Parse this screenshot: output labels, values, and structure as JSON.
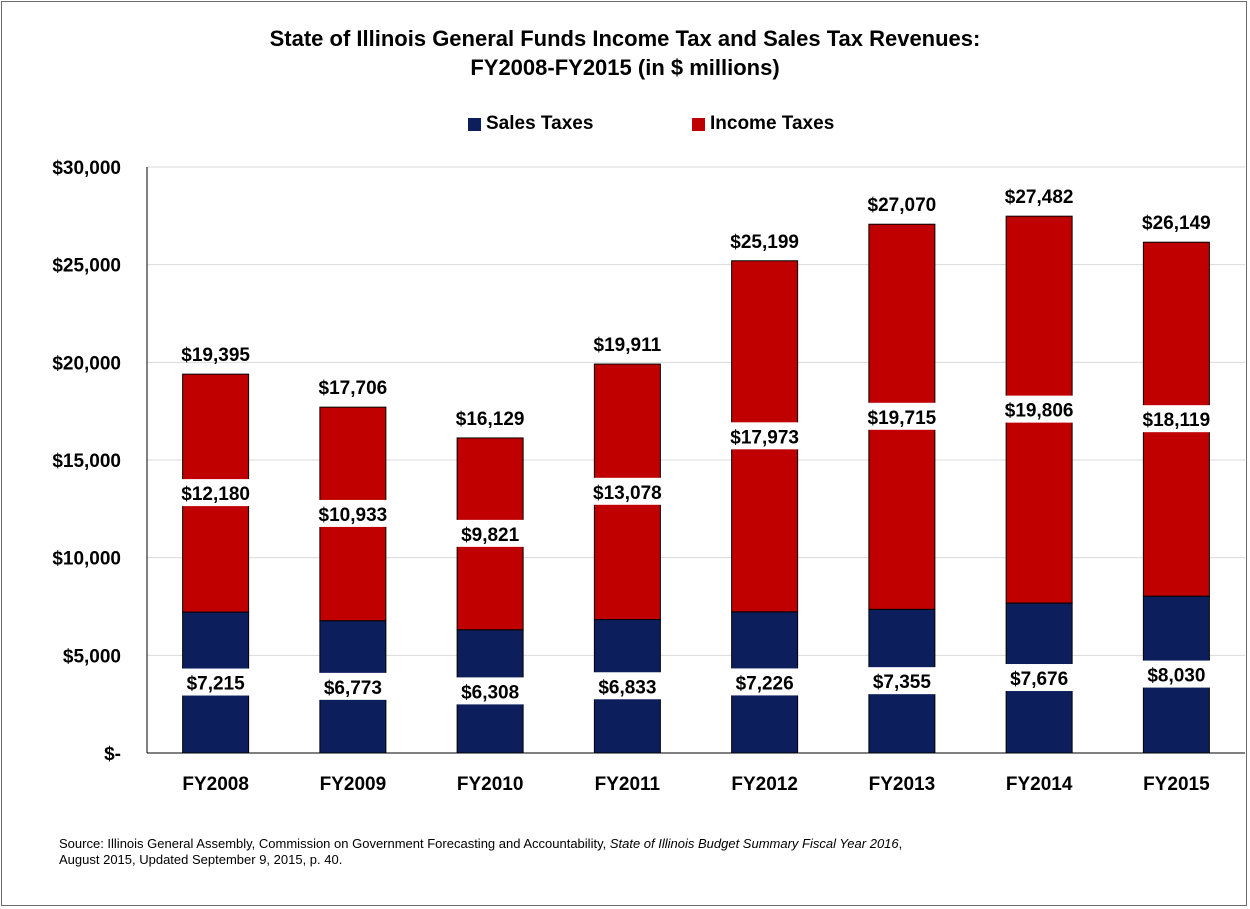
{
  "chart_data": {
    "type": "bar",
    "stacked": true,
    "title_line1": "State of Illinois General Funds Income Tax and Sales Tax Revenues:",
    "title_line2": "FY2008-FY2015 (in $ millions)",
    "categories": [
      "FY2008",
      "FY2009",
      "FY2010",
      "FY2011",
      "FY2012",
      "FY2013",
      "FY2014",
      "FY2015"
    ],
    "series": [
      {
        "name": "Sales Taxes",
        "color": "#0c1f5c",
        "values": [
          7215,
          6773,
          6308,
          6833,
          7226,
          7355,
          7676,
          8030
        ],
        "labels": [
          "$7,215",
          "$6,773",
          "$6,308",
          "$6,833",
          "$7,226",
          "$7,355",
          "$7,676",
          "$8,030"
        ]
      },
      {
        "name": "Income Taxes",
        "color": "#c00000",
        "values": [
          12180,
          10933,
          9821,
          13078,
          17973,
          19715,
          19806,
          18119
        ],
        "labels": [
          "$12,180",
          "$10,933",
          "$9,821",
          "$13,078",
          "$17,973",
          "$19,715",
          "$19,806",
          "$18,119"
        ]
      }
    ],
    "totals": [
      "$19,395",
      "$17,706",
      "$16,129",
      "$19,911",
      "$25,199",
      "$27,070",
      "$27,482",
      "$26,149"
    ],
    "total_values": [
      19395,
      17706,
      16129,
      19911,
      25199,
      27070,
      27482,
      26149
    ],
    "yticks": [
      0,
      5000,
      10000,
      15000,
      20000,
      25000,
      30000
    ],
    "ytick_labels": [
      "$-",
      "$5,000",
      "$10,000",
      "$15,000",
      "$20,000",
      "$25,000",
      "$30,000"
    ],
    "ylim": [
      0,
      30000
    ],
    "grid": true,
    "legend_position": "top"
  },
  "source": {
    "prefix": "Source: Illinois General Assembly, Commission on Government Forecasting and Accountability, ",
    "italic": "State of Illinois Budget Summary Fiscal Year 2016",
    "suffix": ",",
    "line2": "August 2015, Updated September 9, 2015, p. 40."
  }
}
